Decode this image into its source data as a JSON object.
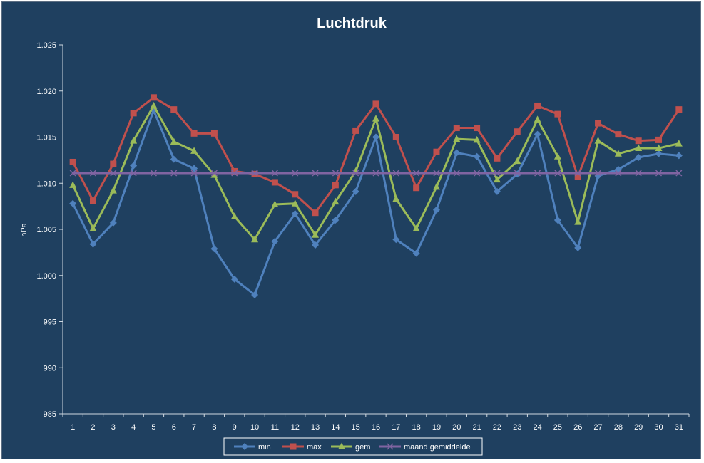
{
  "chart_data": {
    "type": "line",
    "title": "Luchtdruk",
    "xlabel": "",
    "ylabel": "hPa",
    "x": [
      1,
      2,
      3,
      4,
      5,
      6,
      7,
      8,
      9,
      10,
      11,
      12,
      13,
      14,
      15,
      16,
      17,
      18,
      19,
      20,
      21,
      22,
      23,
      24,
      25,
      26,
      27,
      28,
      29,
      30,
      31
    ],
    "ylim": [
      985,
      1025
    ],
    "y_ticks": [
      "985",
      "990",
      "995",
      "1.000",
      "1.005",
      "1.010",
      "1.015",
      "1.020",
      "1.025"
    ],
    "y_tick_values": [
      985,
      990,
      995,
      1000,
      1005,
      1010,
      1015,
      1020,
      1025
    ],
    "grid": false,
    "legend_position": "bottom",
    "series": [
      {
        "name": "min",
        "color": "#4f81bd",
        "marker": "diamond",
        "values": [
          1007.8,
          1003.4,
          1005.7,
          1011.9,
          1017.9,
          1012.6,
          1011.6,
          1002.9,
          999.6,
          997.9,
          1003.7,
          1006.7,
          1003.3,
          1006.0,
          1009.1,
          1015.0,
          1003.9,
          1002.4,
          1007.1,
          1013.3,
          1012.9,
          1009.1,
          1011.0,
          1015.3,
          1006.0,
          1003.0,
          1010.8,
          1011.5,
          1012.8,
          1013.2,
          1013.0
        ]
      },
      {
        "name": "max",
        "color": "#c0504d",
        "marker": "square",
        "values": [
          1012.3,
          1008.1,
          1012.1,
          1017.6,
          1019.3,
          1018.0,
          1015.4,
          1015.4,
          1011.3,
          1011.0,
          1010.1,
          1008.8,
          1006.8,
          1009.8,
          1015.7,
          1018.6,
          1015.0,
          1009.5,
          1013.4,
          1016.0,
          1016.0,
          1012.7,
          1015.6,
          1018.4,
          1017.5,
          1010.7,
          1016.5,
          1015.3,
          1014.6,
          1014.7,
          1018.0
        ]
      },
      {
        "name": "gem",
        "color": "#9bbb59",
        "marker": "triangle",
        "values": [
          1009.8,
          1005.1,
          1009.2,
          1014.6,
          1018.4,
          1014.5,
          1013.5,
          1010.9,
          1006.4,
          1003.9,
          1007.7,
          1007.8,
          1004.4,
          1008.0,
          1011.3,
          1017.0,
          1008.3,
          1005.1,
          1009.6,
          1014.8,
          1014.7,
          1010.4,
          1012.4,
          1016.9,
          1012.9,
          1005.8,
          1014.6,
          1013.2,
          1013.8,
          1013.8,
          1014.3
        ]
      },
      {
        "name": "maand gemiddelde",
        "color": "#8064a2",
        "marker": "x",
        "values": [
          1011.1,
          1011.1,
          1011.1,
          1011.1,
          1011.1,
          1011.1,
          1011.1,
          1011.1,
          1011.1,
          1011.1,
          1011.1,
          1011.1,
          1011.1,
          1011.1,
          1011.1,
          1011.1,
          1011.1,
          1011.1,
          1011.1,
          1011.1,
          1011.1,
          1011.1,
          1011.1,
          1011.1,
          1011.1,
          1011.1,
          1011.1,
          1011.1,
          1011.1,
          1011.1,
          1011.1
        ]
      }
    ]
  }
}
